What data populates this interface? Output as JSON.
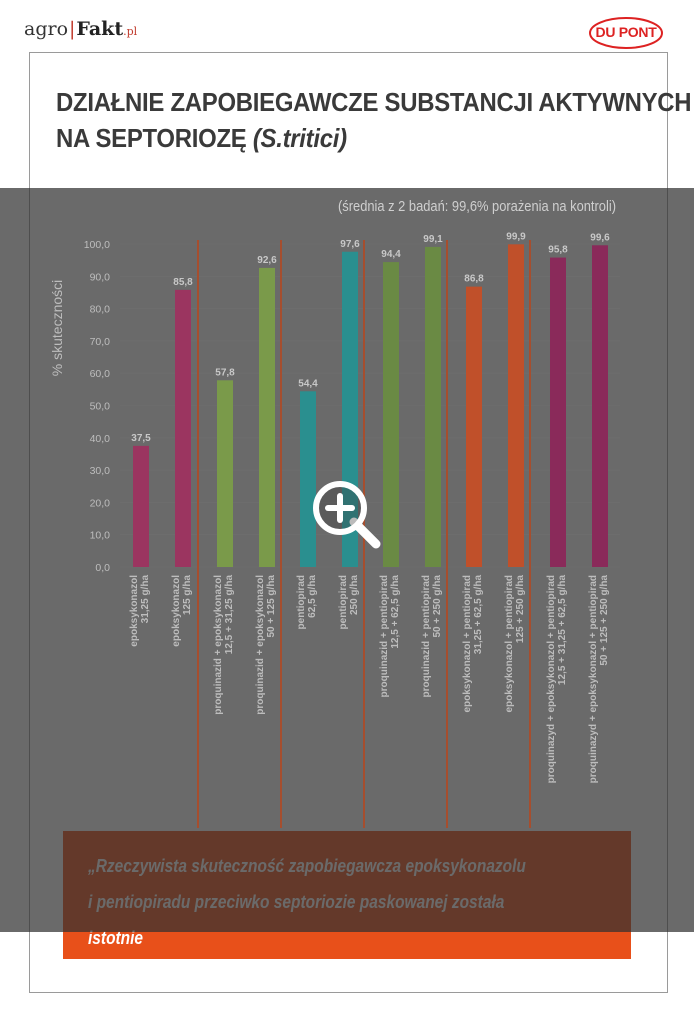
{
  "header": {
    "logo_agro": "agro",
    "logo_fakt": "Fakt",
    "logo_pl": ".pl",
    "brand_logo": "DU PONT"
  },
  "title": {
    "line1": "DZIAŁNIE ZAPOBIEGAWCZE SUBSTANCJI AKTYWNYCH",
    "line2_prefix": "NA SEPTORIOZĘ ",
    "line2_italic": "(S.tritici)"
  },
  "quote": {
    "text": "„Rzeczywista skuteczność zapobiegawcza epoksykonazolu\ni pentiopiradu przeciwko septoriozie paskowanej została istotnie\nzwiększona przez dodanie proquinazydu!”"
  },
  "zoom_icon": "zoom-in-icon",
  "colors": {
    "quote_bg": "#e8501a",
    "overlay": "rgba(48,48,48,0.72)",
    "separator": "#b5471f"
  },
  "chart_data": {
    "type": "bar",
    "subtitle": "(średnia z 2 badań: 99,6% porażenia na kontroli)",
    "ylabel": "% skuteczności",
    "xlabel": "",
    "ylim": [
      0,
      100
    ],
    "yticks": [
      "0,0",
      "10,0",
      "20,0",
      "30,0",
      "40,0",
      "50,0",
      "60,0",
      "70,0",
      "80,0",
      "90,0",
      "100,0"
    ],
    "grid": true,
    "categories": [
      [
        "epoksykonazol",
        "31,25 g/ha"
      ],
      [
        "epoksykonazol",
        "125 g/ha"
      ],
      [
        "proquinazid + epoksykonazol",
        "12,5 + 31,25 g/ha"
      ],
      [
        "proquinazid + epoksykonazol",
        "50 + 125 g/ha"
      ],
      [
        "pentiopirad",
        "62,5 g/ha"
      ],
      [
        "pentiopirad",
        "250 g/ha"
      ],
      [
        "proquinazid + pentiopirad",
        "12,5 + 62,5 g/ha"
      ],
      [
        "proquinazid + pentiopirad",
        "50 + 250 g/ha"
      ],
      [
        "epoksykonazol + pentiopirad",
        "31,25 + 62,5 g/ha"
      ],
      [
        "epoksykonazol + pentiopirad",
        "125 + 250 g/ha"
      ],
      [
        "proquinazyd + epoksykonazol + pentiopirad",
        "12,5 + 31,25 + 62,5 g/ha"
      ],
      [
        "proquinazyd + epoksykonazol + pentiopirad",
        "50 + 125 + 250 g/ha"
      ]
    ],
    "values": [
      37.5,
      85.8,
      57.8,
      92.6,
      54.4,
      97.6,
      94.4,
      99.1,
      86.8,
      99.9,
      95.8,
      99.6
    ],
    "value_labels": [
      "37,5",
      "85,8",
      "57,8",
      "92,6",
      "54,4",
      "97,6",
      "94,4",
      "99,1",
      "86,8",
      "99,9",
      "95,8",
      "99,6"
    ],
    "bar_colors": [
      "#9b3560",
      "#9b3560",
      "#7a9a4a",
      "#7a9a4a",
      "#2a8f8f",
      "#2a8f8f",
      "#6a8a44",
      "#6a8a44",
      "#c0502a",
      "#c0502a",
      "#8a2a5a",
      "#8a2a5a"
    ]
  }
}
